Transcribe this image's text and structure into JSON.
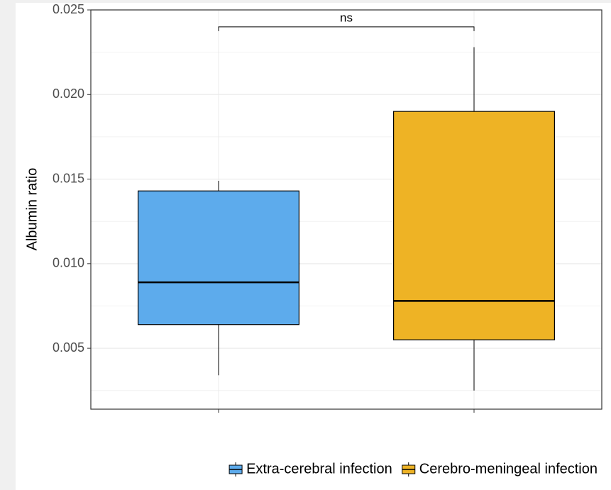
{
  "chart_data": {
    "type": "box",
    "ylabel": "Albumin ratio",
    "ylim": [
      0.0014,
      0.025
    ],
    "yticks": [
      0.005,
      {
        "value": 0.01,
        "label": "0.010"
      },
      0.015,
      {
        "value": 0.02,
        "label": "0.020"
      },
      0.025
    ],
    "yminor": [
      0.0025,
      0.0075,
      0.0125,
      0.0175,
      0.0225
    ],
    "grid": true,
    "legend": "bottom",
    "series": [
      {
        "name": "Extra-cerebral infection",
        "color": "#5dabec",
        "whislo": 0.0034,
        "q1": 0.0064,
        "median": 0.0089,
        "q3": 0.0143,
        "whishi": 0.0149
      },
      {
        "name": "Cerebro-meningeal infection",
        "color": "#eeb325",
        "whislo": 0.0025,
        "q1": 0.0055,
        "median": 0.0078,
        "q3": 0.019,
        "whishi": 0.0228
      }
    ],
    "annotation": {
      "text": "ns",
      "y": 0.024
    }
  }
}
